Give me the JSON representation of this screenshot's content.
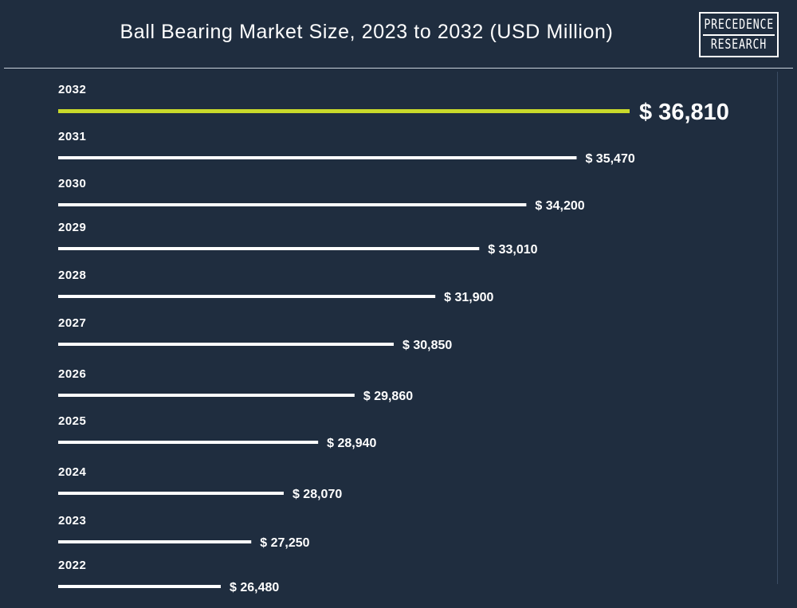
{
  "header": {
    "title": "Ball Bearing Market Size, 2023 to 2032 (USD Million)",
    "logo_line1": "PRECEDENCE",
    "logo_line2": "RESEARCH"
  },
  "colors": {
    "background": "#1f2d3f",
    "bar": "#ffffff",
    "highlight_bar": "#c8d92b",
    "text": "#ffffff"
  },
  "chart_data": {
    "type": "bar",
    "orientation": "horizontal",
    "title": "Ball Bearing Market Size, 2023 to 2032 (USD Million)",
    "categories": [
      "2032",
      "2031",
      "2030",
      "2029",
      "2028",
      "2027",
      "2026",
      "2025",
      "2024",
      "2023",
      "2022"
    ],
    "values": [
      36810,
      35470,
      34200,
      33010,
      31900,
      30850,
      29860,
      28940,
      28070,
      27250,
      26480
    ],
    "value_labels": [
      "$ 36,810",
      "$ 35,470",
      "$ 34,200",
      "$ 33,010",
      "$ 31,900",
      "$ 30,850",
      "$ 29,860",
      "$ 28,940",
      "$ 28,070",
      "$ 27,250",
      "$ 26,480"
    ],
    "highlight_category": "2032",
    "grid": false,
    "legend": "none"
  }
}
